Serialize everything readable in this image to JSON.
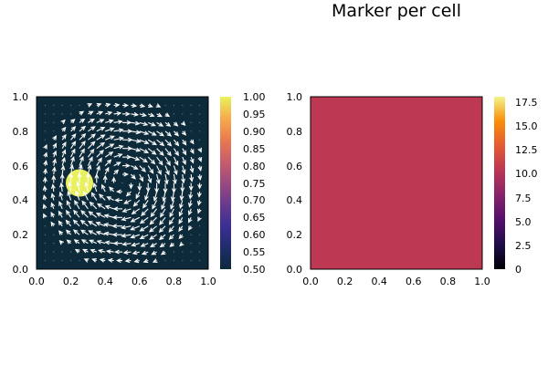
{
  "chart_data": [
    {
      "type": "heatmap",
      "subtype": "heatmap-with-quiver",
      "title": "",
      "xlabel": "",
      "ylabel": "",
      "xlim": [
        0.0,
        1.0
      ],
      "ylim": [
        0.0,
        1.0
      ],
      "x_ticks": [
        "0.0",
        "0.2",
        "0.4",
        "0.6",
        "0.8",
        "1.0"
      ],
      "y_ticks": [
        "0.0",
        "0.2",
        "0.4",
        "0.6",
        "0.8",
        "1.0"
      ],
      "grid": false,
      "colormap": "thermal",
      "colorbar": {
        "range": [
          0.5,
          1.0
        ],
        "ticks": [
          "0.50",
          "0.55",
          "0.60",
          "0.65",
          "0.70",
          "0.75",
          "0.80",
          "0.85",
          "0.90",
          "0.95",
          "1.00"
        ]
      },
      "field": {
        "background_value": 0.5,
        "disk": {
          "center": [
            0.25,
            0.5
          ],
          "radius": 0.08,
          "value": 1.0
        }
      },
      "quiver": {
        "grid_step": 0.05,
        "center": [
          0.5,
          0.5
        ],
        "flow_radius": 0.5,
        "rotation": "clockwise",
        "arrow_color": "#ffffff"
      },
      "colors": {
        "background": "#0c2a3a",
        "disk": "#e8f05c"
      }
    },
    {
      "type": "heatmap",
      "title": "Marker per cell",
      "xlabel": "",
      "ylabel": "",
      "xlim": [
        0.0,
        1.0
      ],
      "ylim": [
        0.0,
        1.0
      ],
      "x_ticks": [
        "0.0",
        "0.2",
        "0.4",
        "0.6",
        "0.8",
        "1.0"
      ],
      "y_ticks": [
        "0.0",
        "0.2",
        "0.4",
        "0.6",
        "0.8",
        "1.0"
      ],
      "grid": false,
      "colormap": "inferno",
      "colorbar": {
        "range": [
          0,
          18
        ],
        "ticks": [
          "0",
          "2.5",
          "5.0",
          "7.5",
          "10.0",
          "12.5",
          "15.0",
          "17.5"
        ]
      },
      "field": {
        "uniform_value": 8.5
      },
      "colors": {
        "fill": "#bd3853"
      }
    }
  ]
}
